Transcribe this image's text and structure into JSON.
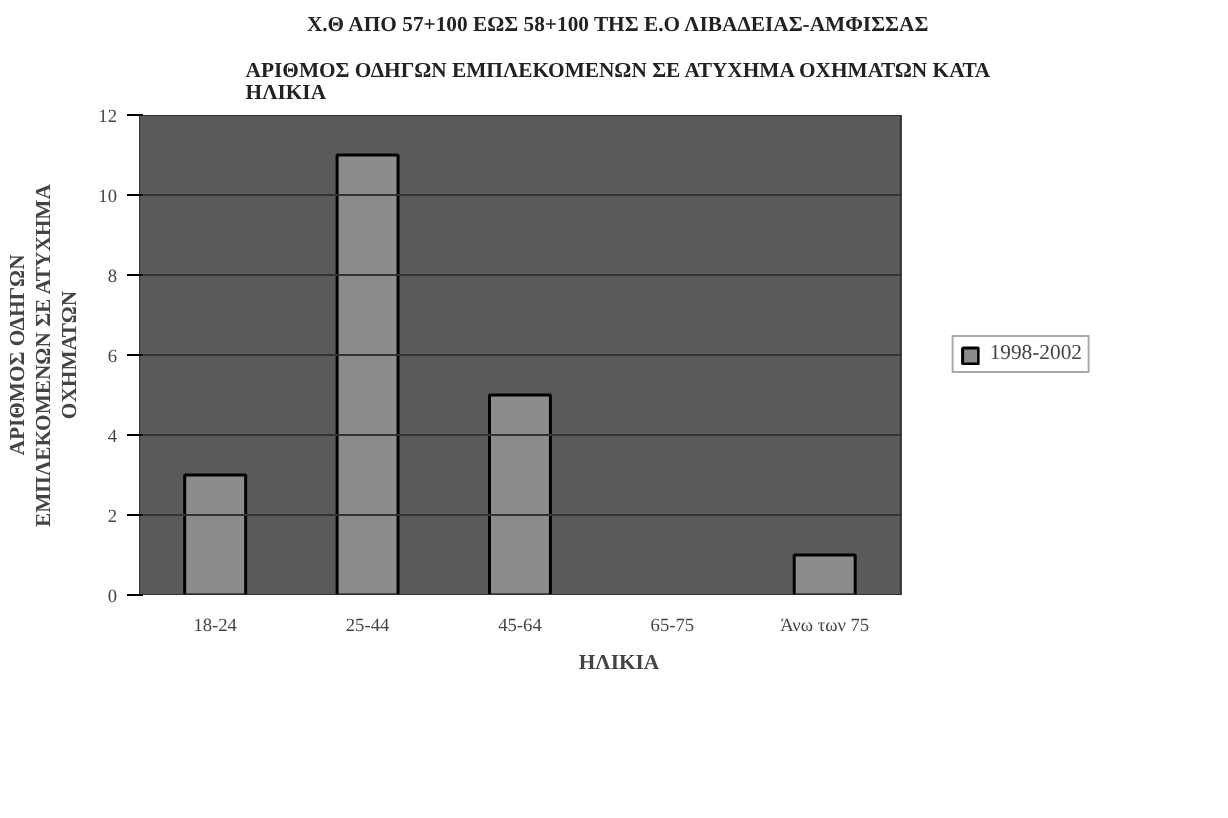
{
  "chart_data": {
    "type": "bar",
    "title": "Χ.Θ ΑΠΟ 57+100 ΕΩΣ 58+100 ΤΗΣ Ε.Ο ΛΙΒΑΔΕΙΑΣ-ΑΜΦΙΣΣΑΣ",
    "subtitle": "ΑΡΙΘΜΟΣ ΟΔΗΓΩΝ ΕΜΠΛΕΚΟΜΕΝΩΝ ΣΕ ΑΤΥΧΗΜΑ ΟΧΗΜΑΤΩΝ ΚΑΤΑ ΗΛΙΚΙΑ",
    "xlabel": "ΗΛΙΚΙΑ",
    "ylabel": "ΑΡΙΘΜΟΣ ΟΔΗΓΩΝ ΕΜΠΛΕΚΟΜΕΝΩΝ ΣΕ ΑΤΥΧΗΜΑ ΟΧΗΜΑΤΩΝ",
    "categories": [
      "18-24",
      "25-44",
      "45-64",
      "65-75",
      "Άνω των 75"
    ],
    "series": [
      {
        "name": "1998-2002",
        "color": "#8c8c8c",
        "values": [
          3,
          11,
          5,
          0,
          1
        ]
      }
    ],
    "ylim": [
      0,
      12
    ],
    "yticks": [
      0,
      2,
      4,
      6,
      8,
      10,
      12
    ],
    "grid": "y",
    "legend": "right"
  }
}
